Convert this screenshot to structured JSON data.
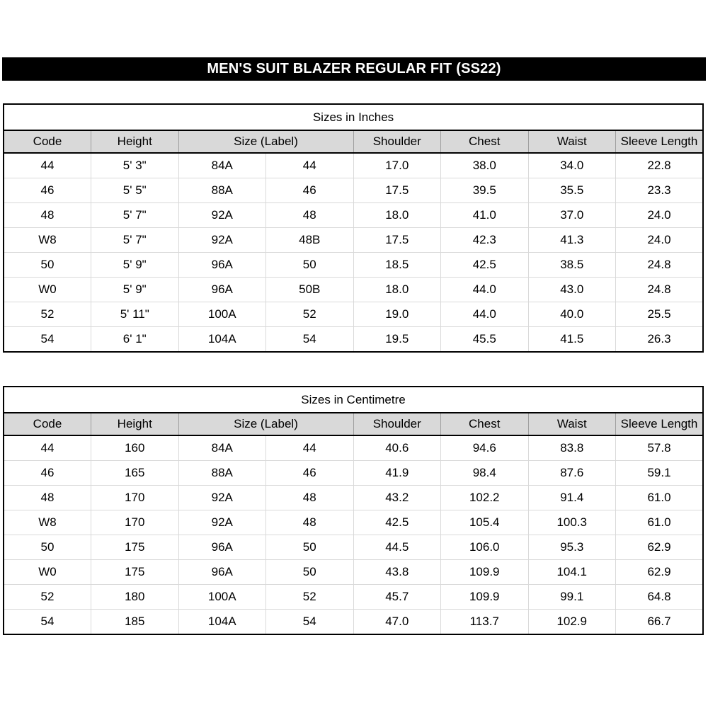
{
  "page_title": "MEN'S SUIT BLAZER REGULAR FIT (SS22)",
  "colors": {
    "title_bar_bg": "#000000",
    "title_bar_text": "#ffffff",
    "header_row_bg": "#d9d9d9",
    "grid_line": "#d9d9d9",
    "heavy_line": "#000000",
    "text": "#000000",
    "page_bg": "#ffffff"
  },
  "chart_data": [
    {
      "type": "table",
      "title": "Sizes in Inches",
      "headers": [
        {
          "label": "Code",
          "span": 1
        },
        {
          "label": "Height",
          "span": 1
        },
        {
          "label": "Size (Label)",
          "span": 2
        },
        {
          "label": "Shoulder",
          "span": 1
        },
        {
          "label": "Chest",
          "span": 1
        },
        {
          "label": "Waist",
          "span": 1
        },
        {
          "label": "Sleeve Length",
          "span": 1
        }
      ],
      "rows": [
        [
          "44",
          "5' 3\"",
          "84A",
          "44",
          "17.0",
          "38.0",
          "34.0",
          "22.8"
        ],
        [
          "46",
          "5' 5\"",
          "88A",
          "46",
          "17.5",
          "39.5",
          "35.5",
          "23.3"
        ],
        [
          "48",
          "5' 7\"",
          "92A",
          "48",
          "18.0",
          "41.0",
          "37.0",
          "24.0"
        ],
        [
          "W8",
          "5' 7\"",
          "92A",
          "48B",
          "17.5",
          "42.3",
          "41.3",
          "24.0"
        ],
        [
          "50",
          "5' 9\"",
          "96A",
          "50",
          "18.5",
          "42.5",
          "38.5",
          "24.8"
        ],
        [
          "W0",
          "5' 9\"",
          "96A",
          "50B",
          "18.0",
          "44.0",
          "43.0",
          "24.8"
        ],
        [
          "52",
          "5' 11\"",
          "100A",
          "52",
          "19.0",
          "44.0",
          "40.0",
          "25.5"
        ],
        [
          "54",
          "6' 1\"",
          "104A",
          "54",
          "19.5",
          "45.5",
          "41.5",
          "26.3"
        ]
      ]
    },
    {
      "type": "table",
      "title": "Sizes in Centimetre",
      "headers": [
        {
          "label": "Code",
          "span": 1
        },
        {
          "label": "Height",
          "span": 1
        },
        {
          "label": "Size (Label)",
          "span": 2
        },
        {
          "label": "Shoulder",
          "span": 1
        },
        {
          "label": "Chest",
          "span": 1
        },
        {
          "label": "Waist",
          "span": 1
        },
        {
          "label": "Sleeve Length",
          "span": 1
        }
      ],
      "rows": [
        [
          "44",
          "160",
          "84A",
          "44",
          "40.6",
          "94.6",
          "83.8",
          "57.8"
        ],
        [
          "46",
          "165",
          "88A",
          "46",
          "41.9",
          "98.4",
          "87.6",
          "59.1"
        ],
        [
          "48",
          "170",
          "92A",
          "48",
          "43.2",
          "102.2",
          "91.4",
          "61.0"
        ],
        [
          "W8",
          "170",
          "92A",
          "48",
          "42.5",
          "105.4",
          "100.3",
          "61.0"
        ],
        [
          "50",
          "175",
          "96A",
          "50",
          "44.5",
          "106.0",
          "95.3",
          "62.9"
        ],
        [
          "W0",
          "175",
          "96A",
          "50",
          "43.8",
          "109.9",
          "104.1",
          "62.9"
        ],
        [
          "52",
          "180",
          "100A",
          "52",
          "45.7",
          "109.9",
          "99.1",
          "64.8"
        ],
        [
          "54",
          "185",
          "104A",
          "54",
          "47.0",
          "113.7",
          "102.9",
          "66.7"
        ]
      ]
    }
  ]
}
